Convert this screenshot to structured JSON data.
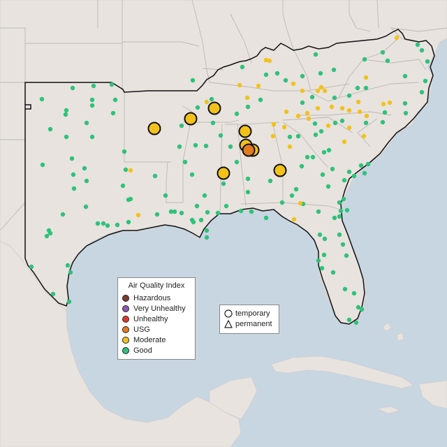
{
  "legend": {
    "title": "Air Quality Index",
    "categories": [
      {
        "label": "Hazardous",
        "color": "#7e3a2e"
      },
      {
        "label": "Very Unhealthy",
        "color": "#8f57b3"
      },
      {
        "label": "Unhealthy",
        "color": "#e03a2a"
      },
      {
        "label": "USG",
        "color": "#e37a1e"
      },
      {
        "label": "Moderate",
        "color": "#f2c21b"
      },
      {
        "label": "Good",
        "color": "#2ec27a"
      }
    ]
  },
  "site_types": {
    "temporary": "temporary",
    "permanent": "permanent"
  },
  "colors": {
    "ocean": "#c8d6e2",
    "land": "#e8e3df",
    "state_border": "#bdb8b4",
    "region_outline": "#111111"
  },
  "stations": {
    "moderate_large": [
      [
        221,
        184
      ],
      [
        273,
        170
      ],
      [
        307,
        155
      ],
      [
        351,
        188
      ],
      [
        352,
        208
      ],
      [
        362,
        215
      ],
      [
        320,
        248
      ],
      [
        401,
        244
      ]
    ],
    "usg_large": [
      [
        356,
        215
      ]
    ],
    "moderate_small": [
      [
        381,
        86
      ],
      [
        386,
        87
      ],
      [
        568,
        54
      ],
      [
        343,
        122
      ],
      [
        296,
        146
      ],
      [
        354,
        140
      ],
      [
        433,
        130
      ],
      [
        455,
        130
      ],
      [
        465,
        130
      ],
      [
        410,
        160
      ],
      [
        440,
        162
      ],
      [
        455,
        155
      ],
      [
        475,
        153
      ],
      [
        490,
        155
      ],
      [
        500,
        158
      ],
      [
        513,
        146
      ],
      [
        515,
        160
      ],
      [
        525,
        166
      ],
      [
        549,
        149
      ],
      [
        558,
        147
      ],
      [
        427,
        166
      ],
      [
        391,
        195
      ],
      [
        407,
        182
      ],
      [
        442,
        170
      ],
      [
        470,
        180
      ],
      [
        500,
        183
      ],
      [
        493,
        203
      ],
      [
        415,
        210
      ],
      [
        521,
        195
      ],
      [
        524,
        111
      ],
      [
        420,
        120
      ],
      [
        460,
        125
      ],
      [
        370,
        123
      ],
      [
        187,
        244
      ],
      [
        198,
        308
      ],
      [
        421,
        314
      ],
      [
        430,
        291
      ],
      [
        392,
        178
      ]
    ],
    "good_small": [
      [
        60,
        142
      ],
      [
        104,
        126
      ],
      [
        134,
        123
      ],
      [
        160,
        121
      ],
      [
        95,
        158
      ],
      [
        94,
        164
      ],
      [
        132,
        143
      ],
      [
        132,
        151
      ],
      [
        165,
        143
      ],
      [
        162,
        162
      ],
      [
        72,
        185
      ],
      [
        124,
        176
      ],
      [
        95,
        196
      ],
      [
        132,
        196
      ],
      [
        103,
        227
      ],
      [
        61,
        236
      ],
      [
        121,
        241
      ],
      [
        124,
        259
      ],
      [
        178,
        217
      ],
      [
        180,
        243
      ],
      [
        105,
        250
      ],
      [
        106,
        270
      ],
      [
        176,
        266
      ],
      [
        184,
        286
      ],
      [
        70,
        330
      ],
      [
        72,
        334
      ],
      [
        67,
        338
      ],
      [
        90,
        307
      ],
      [
        123,
        296
      ],
      [
        140,
        320
      ],
      [
        148,
        320
      ],
      [
        154,
        323
      ],
      [
        168,
        322
      ],
      [
        184,
        318
      ],
      [
        225,
        307
      ],
      [
        245,
        303
      ],
      [
        260,
        305
      ],
      [
        275,
        315
      ],
      [
        277,
        318
      ],
      [
        288,
        315
      ],
      [
        296,
        330
      ],
      [
        296,
        340
      ],
      [
        297,
        304
      ],
      [
        312,
        305
      ],
      [
        324,
        295
      ],
      [
        345,
        302
      ],
      [
        360,
        303
      ],
      [
        381,
        312
      ],
      [
        404,
        290
      ],
      [
        434,
        292
      ],
      [
        456,
        303
      ],
      [
        479,
        312
      ],
      [
        486,
        310
      ],
      [
        488,
        302
      ],
      [
        486,
        290
      ],
      [
        492,
        285
      ],
      [
        493,
        258
      ],
      [
        517,
        237
      ],
      [
        527,
        235
      ],
      [
        507,
        252
      ],
      [
        470,
        267
      ],
      [
        476,
        242
      ],
      [
        432,
        238
      ],
      [
        424,
        271
      ],
      [
        448,
        225
      ],
      [
        464,
        218
      ],
      [
        275,
        250
      ],
      [
        293,
        280
      ],
      [
        276,
        115
      ],
      [
        303,
        142
      ],
      [
        283,
        154
      ],
      [
        347,
        96
      ],
      [
        381,
        107
      ],
      [
        397,
        105
      ],
      [
        409,
        115
      ],
      [
        433,
        109
      ],
      [
        452,
        78
      ],
      [
        459,
        105
      ],
      [
        478,
        100
      ],
      [
        522,
        85
      ],
      [
        548,
        75
      ],
      [
        555,
        87
      ],
      [
        598,
        64
      ],
      [
        604,
        72
      ],
      [
        609,
        116
      ],
      [
        604,
        132
      ],
      [
        580,
        148
      ],
      [
        581,
        162
      ],
      [
        551,
        161
      ],
      [
        524,
        176
      ],
      [
        480,
        176
      ],
      [
        433,
        147
      ],
      [
        427,
        195
      ],
      [
        415,
        196
      ],
      [
        452,
        193
      ],
      [
        451,
        177
      ],
      [
        490,
        173
      ],
      [
        548,
        175
      ],
      [
        522,
        248
      ],
      [
        462,
        250
      ],
      [
        465,
        342
      ],
      [
        464,
        365
      ],
      [
        456,
        373
      ],
      [
        461,
        384
      ],
      [
        486,
        336
      ],
      [
        491,
        350
      ],
      [
        477,
        390
      ],
      [
        494,
        414
      ],
      [
        507,
        420
      ],
      [
        513,
        440
      ],
      [
        518,
        443
      ],
      [
        510,
        462
      ],
      [
        500,
        458
      ],
      [
        45,
        382
      ],
      [
        97,
        380
      ],
      [
        101,
        390
      ],
      [
        99,
        432
      ],
      [
        76,
        421
      ],
      [
        260,
        180
      ],
      [
        257,
        210
      ],
      [
        265,
        232
      ],
      [
        305,
        176
      ],
      [
        339,
        163
      ],
      [
        373,
        143
      ],
      [
        355,
        153
      ],
      [
        447,
        139
      ],
      [
        479,
        140
      ],
      [
        512,
        126
      ],
      [
        612,
        88
      ],
      [
        580,
        109
      ],
      [
        524,
        126
      ],
      [
        500,
        137
      ],
      [
        460,
        188
      ],
      [
        440,
        225
      ],
      [
        471,
        215
      ],
      [
        497,
        301
      ],
      [
        500,
        246
      ],
      [
        496,
        366
      ],
      [
        458,
        336
      ],
      [
        418,
        280
      ],
      [
        387,
        259
      ],
      [
        355,
        275
      ],
      [
        355,
        256
      ],
      [
        339,
        232
      ],
      [
        222,
        252
      ],
      [
        237,
        280
      ],
      [
        187,
        285
      ],
      [
        250,
        303
      ],
      [
        282,
        295
      ],
      [
        320,
        263
      ],
      [
        330,
        210
      ],
      [
        316,
        194
      ],
      [
        295,
        209
      ],
      [
        280,
        208
      ]
    ]
  }
}
